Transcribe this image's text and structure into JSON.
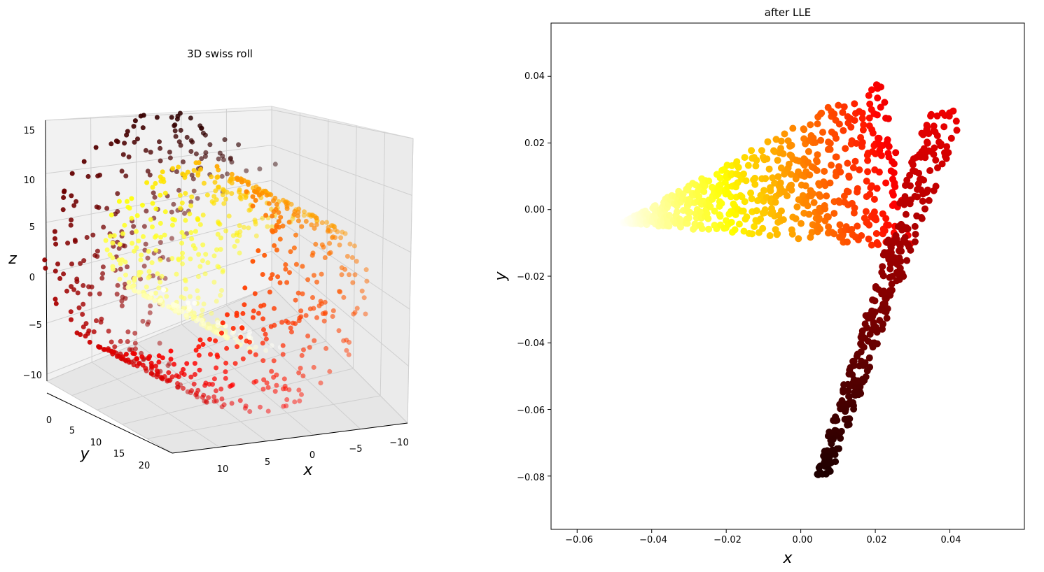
{
  "chart_data": [
    {
      "type": "scatter",
      "projection": "3d",
      "title": "3D swiss roll",
      "xlabel": "x",
      "ylabel": "y",
      "zlabel": "z",
      "x_ticks": [
        "10",
        "5",
        "0",
        "−5",
        "−10"
      ],
      "y_ticks": [
        "0",
        "5",
        "10",
        "15",
        "20"
      ],
      "z_ticks": [
        "15",
        "10",
        "5",
        "0",
        "−5",
        "−10"
      ],
      "xlim": [
        -11,
        13
      ],
      "ylim": [
        -1,
        22
      ],
      "zlim": [
        -12,
        15
      ],
      "t_range": [
        4.71,
        14.14
      ],
      "colormap": "hot",
      "grid": true,
      "n_points": 1000
    },
    {
      "type": "scatter",
      "title": "after LLE",
      "xlabel": "x",
      "ylabel": "y",
      "x_ticks": [
        "−0.06",
        "−0.04",
        "−0.02",
        "0.00",
        "0.02",
        "0.04"
      ],
      "y_ticks": [
        "0.04",
        "0.02",
        "0.00",
        "−0.02",
        "−0.04",
        "−0.06",
        "−0.08"
      ],
      "xlim": [
        -0.067,
        0.06
      ],
      "ylim": [
        -0.096,
        0.056
      ],
      "colormap": "hot",
      "grid": false,
      "n_points": 1000
    }
  ]
}
